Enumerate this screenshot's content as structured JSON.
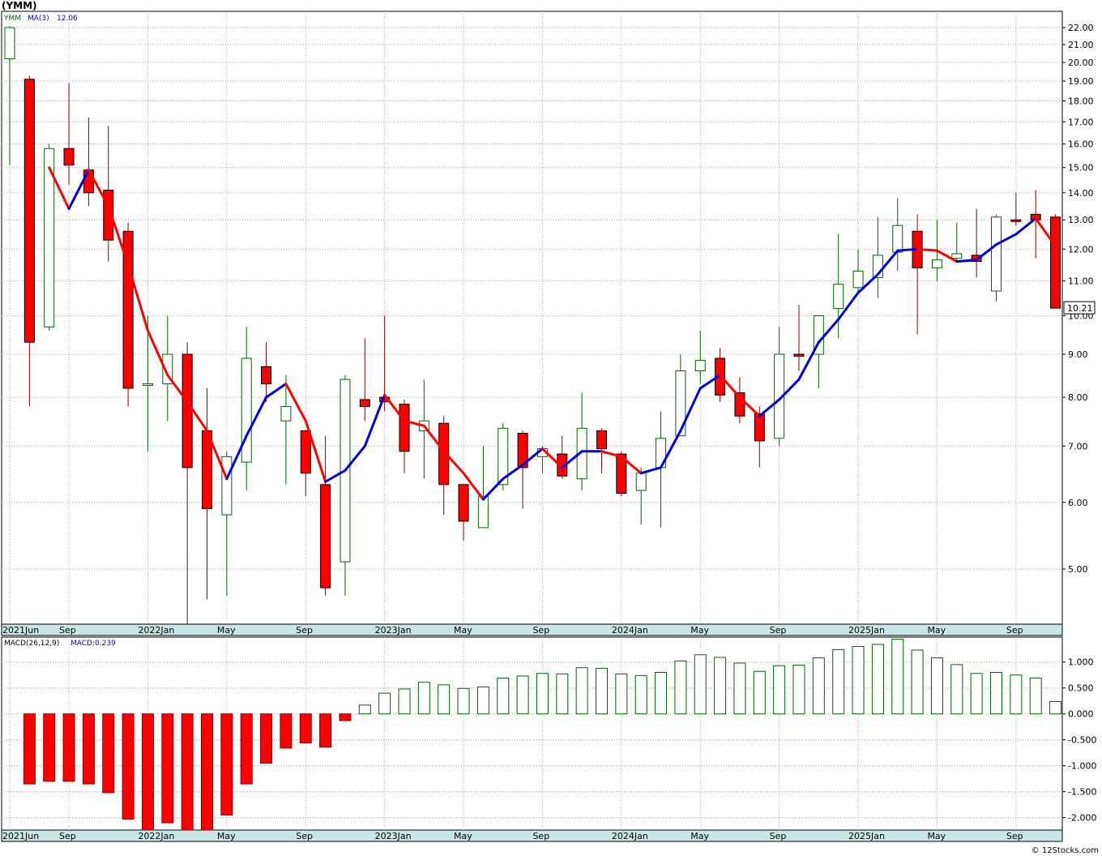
{
  "title": "(YMM)",
  "credit": "© 12Stocks.com",
  "price_legend": {
    "symbol": "YMM",
    "ma_label": "MA(3)",
    "ma_value": "12.06"
  },
  "macd_legend": {
    "name": "MACD(26,12,9)",
    "value_label": "MACD:0.239"
  },
  "last_price_label": "10.21",
  "colors": {
    "up": "#006400",
    "down": "#ff0000",
    "ma_up": "#0000dd",
    "ma_down": "#ff0000",
    "grid": "#aaaaaa",
    "label_bg": "#c8e6e6"
  },
  "chart_data": [
    {
      "type": "candlestick",
      "y_scale": "log",
      "ylim": [
        4.3,
        23
      ],
      "y_ticks": [
        5,
        6,
        7,
        8,
        9,
        10,
        11,
        12,
        13,
        14,
        15,
        16,
        17,
        18,
        19,
        20,
        21,
        22
      ],
      "y_tick_labels": [
        "5.00",
        "6.00",
        "7.00",
        "8.00",
        "9.00",
        "10.00",
        "11.00",
        "12.00",
        "13.00",
        "14.00",
        "15.00",
        "16.00",
        "17.00",
        "18.00",
        "19.00",
        "20.00",
        "21.00",
        "22.00"
      ],
      "x_labels": [
        {
          "label": "2021Jun",
          "index": 0
        },
        {
          "label": "Sep",
          "index": 3
        },
        {
          "label": "2022Jan",
          "index": 7
        },
        {
          "label": "May",
          "index": 11
        },
        {
          "label": "Sep",
          "index": 15
        },
        {
          "label": "2023Jan",
          "index": 19
        },
        {
          "label": "May",
          "index": 23
        },
        {
          "label": "Sep",
          "index": 27
        },
        {
          "label": "2024Jan",
          "index": 31
        },
        {
          "label": "May",
          "index": 35
        },
        {
          "label": "Sep",
          "index": 39
        },
        {
          "label": "2025Jan",
          "index": 43
        },
        {
          "label": "May",
          "index": 47
        },
        {
          "label": "Sep",
          "index": 51
        }
      ],
      "candles": [
        {
          "o": 20.2,
          "h": 22.1,
          "l": 15.1,
          "c": 22.0
        },
        {
          "o": 19.1,
          "h": 19.3,
          "l": 7.8,
          "c": 9.3
        },
        {
          "o": 9.7,
          "h": 16.0,
          "l": 9.6,
          "c": 15.8
        },
        {
          "o": 15.8,
          "h": 18.9,
          "l": 14.3,
          "c": 15.1
        },
        {
          "o": 14.9,
          "h": 17.2,
          "l": 13.5,
          "c": 14.0
        },
        {
          "o": 14.1,
          "h": 16.8,
          "l": 11.6,
          "c": 12.3
        },
        {
          "o": 12.6,
          "h": 12.9,
          "l": 7.8,
          "c": 8.2
        },
        {
          "o": 8.3,
          "h": 10.0,
          "l": 6.9,
          "c": 8.3
        },
        {
          "o": 8.3,
          "h": 10.0,
          "l": 7.5,
          "c": 9.0
        },
        {
          "o": 9.0,
          "h": 9.3,
          "l": 4.3,
          "c": 6.6
        },
        {
          "o": 7.3,
          "h": 8.2,
          "l": 4.6,
          "c": 5.9
        },
        {
          "o": 5.8,
          "h": 6.9,
          "l": 4.65,
          "c": 6.8
        },
        {
          "o": 6.7,
          "h": 9.7,
          "l": 6.2,
          "c": 8.9
        },
        {
          "o": 8.7,
          "h": 9.3,
          "l": 7.9,
          "c": 8.3
        },
        {
          "o": 7.5,
          "h": 8.5,
          "l": 6.3,
          "c": 7.8
        },
        {
          "o": 7.3,
          "h": 7.3,
          "l": 6.1,
          "c": 6.5
        },
        {
          "o": 6.3,
          "h": 7.2,
          "l": 4.65,
          "c": 4.75
        },
        {
          "o": 5.1,
          "h": 8.5,
          "l": 4.65,
          "c": 8.4
        },
        {
          "o": 7.95,
          "h": 9.4,
          "l": 7.5,
          "c": 7.8
        },
        {
          "o": 8.0,
          "h": 10.0,
          "l": 7.7,
          "c": 7.9
        },
        {
          "o": 7.85,
          "h": 7.95,
          "l": 6.5,
          "c": 6.9
        },
        {
          "o": 7.3,
          "h": 8.4,
          "l": 6.4,
          "c": 7.5
        },
        {
          "o": 7.45,
          "h": 7.6,
          "l": 5.8,
          "c": 6.3
        },
        {
          "o": 6.3,
          "h": 6.3,
          "l": 5.4,
          "c": 5.7
        },
        {
          "o": 5.6,
          "h": 7.0,
          "l": 5.6,
          "c": 6.1
        },
        {
          "o": 6.3,
          "h": 7.45,
          "l": 6.2,
          "c": 7.35
        },
        {
          "o": 7.25,
          "h": 7.3,
          "l": 5.9,
          "c": 6.6
        },
        {
          "o": 6.8,
          "h": 7.0,
          "l": 6.5,
          "c": 6.95
        },
        {
          "o": 6.85,
          "h": 7.2,
          "l": 6.4,
          "c": 6.45
        },
        {
          "o": 6.4,
          "h": 8.1,
          "l": 6.2,
          "c": 7.35
        },
        {
          "o": 7.3,
          "h": 7.35,
          "l": 6.5,
          "c": 6.95
        },
        {
          "o": 6.85,
          "h": 6.9,
          "l": 6.1,
          "c": 6.15
        },
        {
          "o": 6.2,
          "h": 6.6,
          "l": 5.65,
          "c": 6.5
        },
        {
          "o": 6.6,
          "h": 7.7,
          "l": 5.6,
          "c": 7.15
        },
        {
          "o": 7.2,
          "h": 9.0,
          "l": 7.2,
          "c": 8.6
        },
        {
          "o": 8.6,
          "h": 9.6,
          "l": 8.3,
          "c": 8.85
        },
        {
          "o": 8.9,
          "h": 9.15,
          "l": 7.9,
          "c": 8.05
        },
        {
          "o": 8.1,
          "h": 8.45,
          "l": 7.45,
          "c": 7.6
        },
        {
          "o": 7.65,
          "h": 7.8,
          "l": 6.6,
          "c": 7.1
        },
        {
          "o": 7.15,
          "h": 9.7,
          "l": 7.0,
          "c": 9.0
        },
        {
          "o": 9.0,
          "h": 10.3,
          "l": 8.6,
          "c": 8.95
        },
        {
          "o": 9.0,
          "h": 10.0,
          "l": 8.2,
          "c": 10.0
        },
        {
          "o": 10.2,
          "h": 12.5,
          "l": 9.4,
          "c": 10.9
        },
        {
          "o": 10.8,
          "h": 12.0,
          "l": 10.6,
          "c": 11.3
        },
        {
          "o": 11.1,
          "h": 13.1,
          "l": 10.5,
          "c": 11.8
        },
        {
          "o": 11.9,
          "h": 13.8,
          "l": 11.3,
          "c": 12.8
        },
        {
          "o": 12.6,
          "h": 13.2,
          "l": 9.5,
          "c": 11.4
        },
        {
          "o": 11.4,
          "h": 13.0,
          "l": 11.0,
          "c": 11.65
        },
        {
          "o": 11.7,
          "h": 12.9,
          "l": 11.6,
          "c": 11.85
        },
        {
          "o": 11.8,
          "h": 13.4,
          "l": 11.1,
          "c": 11.6
        },
        {
          "o": 10.7,
          "h": 13.2,
          "l": 10.4,
          "c": 13.1
        },
        {
          "o": 13.0,
          "h": 14.0,
          "l": 12.8,
          "c": 12.95
        },
        {
          "o": 13.2,
          "h": 14.1,
          "l": 11.7,
          "c": 13.0
        },
        {
          "o": 13.1,
          "h": 13.2,
          "l": 10.2,
          "c": 10.21
        }
      ],
      "ma3": [
        null,
        null,
        15.0,
        13.4,
        14.9,
        13.5,
        11.5,
        9.6,
        8.5,
        7.9,
        7.3,
        6.4,
        7.2,
        8.0,
        8.3,
        7.5,
        6.35,
        6.55,
        7.0,
        8.05,
        7.5,
        7.4,
        6.9,
        6.5,
        6.05,
        6.4,
        6.65,
        6.95,
        6.6,
        6.9,
        6.9,
        6.8,
        6.5,
        6.6,
        7.3,
        8.2,
        8.5,
        8.0,
        7.6,
        7.95,
        8.4,
        9.3,
        9.9,
        10.65,
        11.2,
        11.95,
        12.0,
        11.95,
        11.6,
        11.65,
        12.15,
        12.5,
        13.05,
        12.1
      ]
    },
    {
      "type": "bar",
      "name": "MACD(26,12,9)",
      "ylim": [
        -2.24,
        1.48
      ],
      "y_ticks": [
        -2.0,
        -1.5,
        -1.0,
        -0.5,
        0.0,
        0.5,
        1.0
      ],
      "y_tick_labels": [
        "-2.000",
        "-1.500",
        "-1.000",
        "-0.500",
        "0.000",
        "0.500",
        "1.000"
      ],
      "values": [
        null,
        -1.35,
        -1.3,
        -1.3,
        -1.35,
        -1.52,
        -2.03,
        -2.24,
        -2.1,
        -2.24,
        -2.24,
        -1.95,
        -1.35,
        -0.95,
        -0.66,
        -0.56,
        -0.64,
        -0.13,
        0.17,
        0.4,
        0.48,
        0.61,
        0.56,
        0.49,
        0.52,
        0.69,
        0.73,
        0.78,
        0.77,
        0.89,
        0.88,
        0.77,
        0.74,
        0.8,
        1.02,
        1.14,
        1.09,
        0.98,
        0.82,
        0.93,
        0.94,
        1.08,
        1.24,
        1.3,
        1.34,
        1.44,
        1.23,
        1.08,
        0.95,
        0.78,
        0.8,
        0.75,
        0.69,
        0.239
      ]
    }
  ]
}
